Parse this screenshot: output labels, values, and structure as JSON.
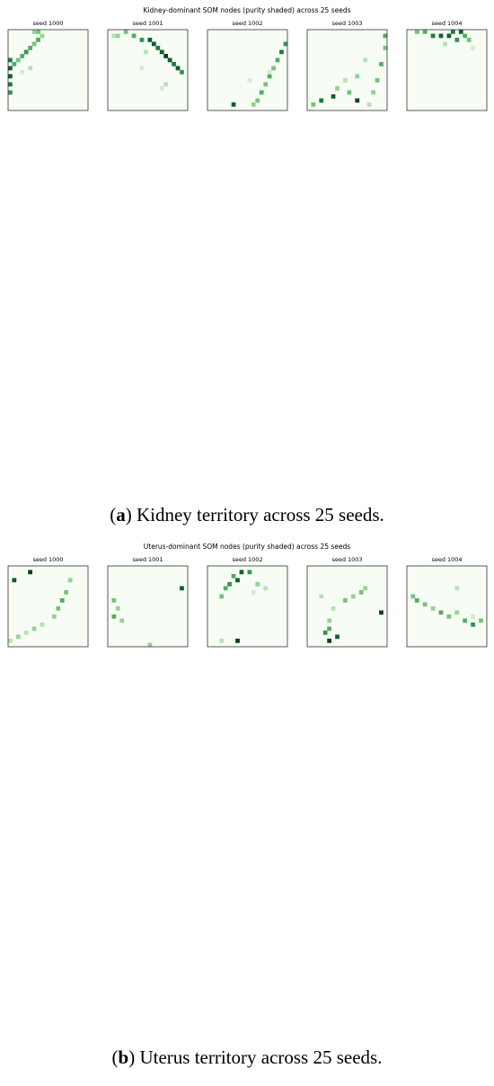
{
  "grid_size": 20,
  "figures": [
    {
      "title": "Kidney-dominant SOM nodes (purity shaded) across 25 seeds",
      "caption": {
        "open": "(",
        "label": "a",
        "text": ") Kidney territory across 25 seeds."
      },
      "panels": [
        {
          "label": "seed 1000",
          "cells": [
            [
              0,
              7,
              0.8
            ],
            [
              0,
              9,
              0.9
            ],
            [
              0,
              11,
              0.9
            ],
            [
              0,
              13,
              0.8
            ],
            [
              0,
              15,
              0.7
            ],
            [
              1,
              8,
              0.6
            ],
            [
              2,
              7,
              0.5
            ],
            [
              3,
              6,
              0.6
            ],
            [
              4,
              5,
              0.7
            ],
            [
              5,
              4,
              0.6
            ],
            [
              6,
              3,
              0.5
            ],
            [
              7,
              2,
              0.6
            ],
            [
              8,
              1,
              0.4
            ],
            [
              7,
              0,
              0.5
            ],
            [
              6,
              0,
              0.4
            ],
            [
              5,
              9,
              0.3
            ],
            [
              3,
              10,
              0.2
            ]
          ]
        },
        {
          "label": "seed 1001",
          "cells": [
            [
              1,
              1,
              0.3
            ],
            [
              2,
              1,
              0.4
            ],
            [
              4,
              0,
              0.5
            ],
            [
              6,
              1,
              0.6
            ],
            [
              8,
              2,
              0.7
            ],
            [
              10,
              2,
              0.9
            ],
            [
              11,
              3,
              0.9
            ],
            [
              12,
              4,
              0.8
            ],
            [
              13,
              5,
              0.9
            ],
            [
              14,
              6,
              1.0
            ],
            [
              15,
              7,
              0.9
            ],
            [
              16,
              8,
              0.8
            ],
            [
              17,
              9,
              0.9
            ],
            [
              18,
              10,
              0.7
            ],
            [
              9,
              5,
              0.3
            ],
            [
              8,
              9,
              0.2
            ],
            [
              14,
              13,
              0.3
            ],
            [
              13,
              14,
              0.2
            ]
          ]
        },
        {
          "label": "seed 1002",
          "cells": [
            [
              19,
              3,
              0.7
            ],
            [
              18,
              5,
              0.8
            ],
            [
              17,
              7,
              0.6
            ],
            [
              16,
              9,
              0.5
            ],
            [
              15,
              11,
              0.6
            ],
            [
              14,
              13,
              0.5
            ],
            [
              13,
              15,
              0.6
            ],
            [
              12,
              17,
              0.5
            ],
            [
              11,
              18,
              0.4
            ],
            [
              6,
              18,
              0.9
            ],
            [
              15,
              10,
              0.2
            ],
            [
              10,
              12,
              0.2
            ]
          ]
        },
        {
          "label": "seed 1003",
          "cells": [
            [
              19,
              1,
              0.6
            ],
            [
              19,
              4,
              0.5
            ],
            [
              18,
              8,
              0.6
            ],
            [
              17,
              12,
              0.5
            ],
            [
              16,
              15,
              0.4
            ],
            [
              14,
              7,
              0.3
            ],
            [
              12,
              11,
              0.4
            ],
            [
              10,
              15,
              0.5
            ],
            [
              9,
              12,
              0.3
            ],
            [
              7,
              14,
              0.4
            ],
            [
              6,
              16,
              0.9
            ],
            [
              3,
              17,
              0.8
            ],
            [
              1,
              18,
              0.5
            ],
            [
              12,
              17,
              1.0
            ],
            [
              15,
              18,
              0.3
            ]
          ]
        },
        {
          "label": "seed 1004",
          "cells": [
            [
              2,
              0,
              0.5
            ],
            [
              4,
              0,
              0.6
            ],
            [
              6,
              1,
              0.8
            ],
            [
              8,
              1,
              0.9
            ],
            [
              10,
              1,
              0.9
            ],
            [
              12,
              2,
              0.7
            ],
            [
              13,
              0,
              0.9
            ],
            [
              14,
              1,
              0.6
            ],
            [
              15,
              2,
              0.5
            ],
            [
              11,
              0,
              0.8
            ],
            [
              9,
              3,
              0.3
            ],
            [
              16,
              4,
              0.2
            ]
          ]
        }
      ]
    },
    {
      "title": "Uterus-dominant SOM nodes (purity shaded) across 25 seeds",
      "caption": {
        "open": "(",
        "label": "b",
        "text": ") Uterus territory across 25 seeds."
      },
      "panels": [
        {
          "label": "seed 1000",
          "cells": [
            [
              5,
              1,
              1.0
            ],
            [
              1,
              3,
              0.9
            ],
            [
              15,
              3,
              0.4
            ],
            [
              14,
              6,
              0.5
            ],
            [
              13,
              8,
              0.6
            ],
            [
              12,
              10,
              0.5
            ],
            [
              11,
              12,
              0.4
            ],
            [
              8,
              14,
              0.3
            ],
            [
              6,
              15,
              0.4
            ],
            [
              4,
              16,
              0.3
            ],
            [
              2,
              17,
              0.4
            ],
            [
              0,
              18,
              0.3
            ]
          ]
        },
        {
          "label": "seed 1001",
          "cells": [
            [
              18,
              5,
              0.9
            ],
            [
              1,
              8,
              0.5
            ],
            [
              2,
              10,
              0.4
            ],
            [
              1,
              12,
              0.6
            ],
            [
              3,
              13,
              0.4
            ],
            [
              10,
              19,
              0.4
            ]
          ]
        },
        {
          "label": "seed 1002",
          "cells": [
            [
              8,
              1,
              0.9
            ],
            [
              10,
              1,
              0.7
            ],
            [
              6,
              2,
              0.6
            ],
            [
              7,
              3,
              0.9
            ],
            [
              5,
              4,
              0.7
            ],
            [
              4,
              5,
              0.6
            ],
            [
              3,
              7,
              0.5
            ],
            [
              12,
              4,
              0.4
            ],
            [
              14,
              5,
              0.3
            ],
            [
              11,
              6,
              0.2
            ],
            [
              7,
              18,
              1.0
            ],
            [
              3,
              18,
              0.3
            ]
          ]
        },
        {
          "label": "seed 1003",
          "cells": [
            [
              14,
              5,
              0.4
            ],
            [
              13,
              6,
              0.5
            ],
            [
              11,
              7,
              0.4
            ],
            [
              9,
              8,
              0.5
            ],
            [
              3,
              7,
              0.3
            ],
            [
              6,
              10,
              0.3
            ],
            [
              5,
              13,
              0.4
            ],
            [
              5,
              15,
              0.6
            ],
            [
              4,
              16,
              0.7
            ],
            [
              7,
              17,
              0.9
            ],
            [
              5,
              18,
              1.0
            ],
            [
              18,
              11,
              1.0
            ]
          ]
        },
        {
          "label": "seed 1004",
          "cells": [
            [
              1,
              7,
              0.5
            ],
            [
              2,
              8,
              0.6
            ],
            [
              4,
              9,
              0.5
            ],
            [
              6,
              10,
              0.4
            ],
            [
              8,
              11,
              0.6
            ],
            [
              10,
              12,
              0.5
            ],
            [
              12,
              11,
              0.4
            ],
            [
              14,
              13,
              0.6
            ],
            [
              16,
              14,
              0.7
            ],
            [
              18,
              13,
              0.5
            ],
            [
              12,
              5,
              0.3
            ],
            [
              16,
              12,
              0.2
            ]
          ]
        }
      ]
    }
  ]
}
